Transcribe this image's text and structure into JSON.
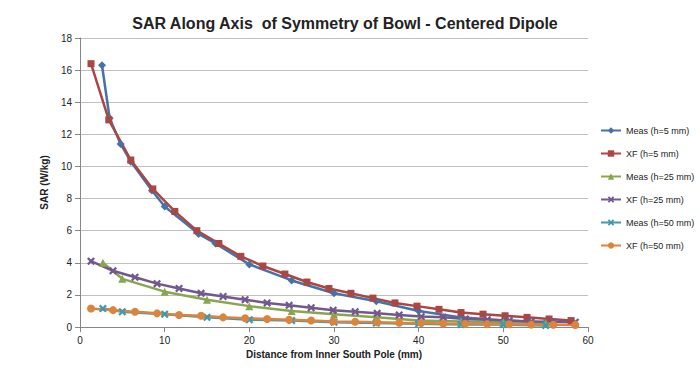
{
  "chart_data": {
    "type": "line",
    "title": "SAR Along Axis  of Symmetry of Bowl - Centered Dipole",
    "x_label": "Distance from Inner South Pole (mm)",
    "y_label": "SAR (W/kg)",
    "xlim": [
      0,
      60
    ],
    "xticks": [
      0,
      10,
      20,
      30,
      40,
      50,
      60
    ],
    "ylim": [
      0,
      18
    ],
    "yticks": [
      0,
      2,
      4,
      6,
      8,
      10,
      12,
      14,
      16,
      18
    ],
    "grid": true,
    "legend": "right",
    "series": [
      {
        "name": "Meas (h=5 mm)",
        "color": "#4572A7",
        "marker": "diamond",
        "x": [
          2.6,
          3.5,
          4.8,
          6.0,
          8.5,
          10,
          14,
          16,
          20,
          25,
          30,
          35,
          40,
          45,
          50,
          55
        ],
        "values": [
          16.3,
          13.0,
          11.4,
          10.3,
          8.5,
          7.5,
          5.8,
          5.2,
          3.9,
          2.9,
          2.1,
          1.6,
          1.0,
          0.6,
          0.4,
          0.3
        ]
      },
      {
        "name": "XF (h=5 mm)",
        "color": "#AA4643",
        "marker": "square",
        "x": [
          1.3,
          3.4,
          6.0,
          8.6,
          11.2,
          13.8,
          16.4,
          19.0,
          21.6,
          24.2,
          26.8,
          29.4,
          32.0,
          34.6,
          37.2,
          39.8,
          42.4,
          45.0,
          47.6,
          50.2,
          52.8,
          55.4,
          58.0
        ],
        "values": [
          16.4,
          12.9,
          10.4,
          8.6,
          7.2,
          6.0,
          5.2,
          4.4,
          3.8,
          3.3,
          2.8,
          2.4,
          2.1,
          1.8,
          1.5,
          1.3,
          1.1,
          0.9,
          0.8,
          0.7,
          0.6,
          0.5,
          0.4
        ]
      },
      {
        "name": "Meas (h=25 mm)",
        "color": "#89A54E",
        "marker": "triangle",
        "x": [
          2.7,
          5,
          10,
          15,
          20,
          25,
          30,
          35,
          40,
          45,
          50,
          55
        ],
        "values": [
          4.0,
          3.0,
          2.2,
          1.7,
          1.3,
          1.0,
          0.8,
          0.6,
          0.4,
          0.35,
          0.3,
          0.25
        ]
      },
      {
        "name": "XF (h=25 mm)",
        "color": "#71588F",
        "marker": "x",
        "x": [
          1.3,
          3.9,
          6.5,
          9.1,
          11.7,
          14.3,
          16.9,
          19.5,
          22.1,
          24.7,
          27.3,
          29.9,
          32.5,
          35.1,
          37.7,
          40.3,
          42.9,
          45.5,
          48.1,
          50.7,
          53.3,
          55.9,
          58.5
        ],
        "values": [
          4.1,
          3.5,
          3.1,
          2.7,
          2.4,
          2.1,
          1.9,
          1.7,
          1.5,
          1.35,
          1.2,
          1.05,
          0.95,
          0.85,
          0.75,
          0.65,
          0.6,
          0.5,
          0.45,
          0.4,
          0.35,
          0.32,
          0.3
        ]
      },
      {
        "name": "Meas (h=50 mm)",
        "color": "#4198AF",
        "marker": "x",
        "x": [
          2.7,
          5,
          10,
          15,
          20,
          25,
          30,
          35,
          40,
          45,
          50,
          55
        ],
        "values": [
          1.15,
          0.95,
          0.8,
          0.6,
          0.45,
          0.4,
          0.3,
          0.25,
          0.2,
          0.15,
          0.15,
          0.1
        ]
      },
      {
        "name": "XF (h=50 mm)",
        "color": "#DB843D",
        "marker": "circle",
        "x": [
          1.3,
          3.9,
          6.5,
          9.1,
          11.7,
          14.3,
          16.9,
          19.5,
          22.1,
          24.7,
          27.3,
          29.9,
          32.5,
          35.1,
          37.7,
          40.3,
          42.9,
          45.5,
          48.1,
          50.7,
          53.3,
          55.9,
          58.5
        ],
        "values": [
          1.15,
          1.05,
          0.95,
          0.85,
          0.75,
          0.7,
          0.6,
          0.55,
          0.5,
          0.45,
          0.4,
          0.35,
          0.33,
          0.3,
          0.27,
          0.25,
          0.22,
          0.2,
          0.18,
          0.17,
          0.15,
          0.14,
          0.13
        ]
      }
    ]
  }
}
